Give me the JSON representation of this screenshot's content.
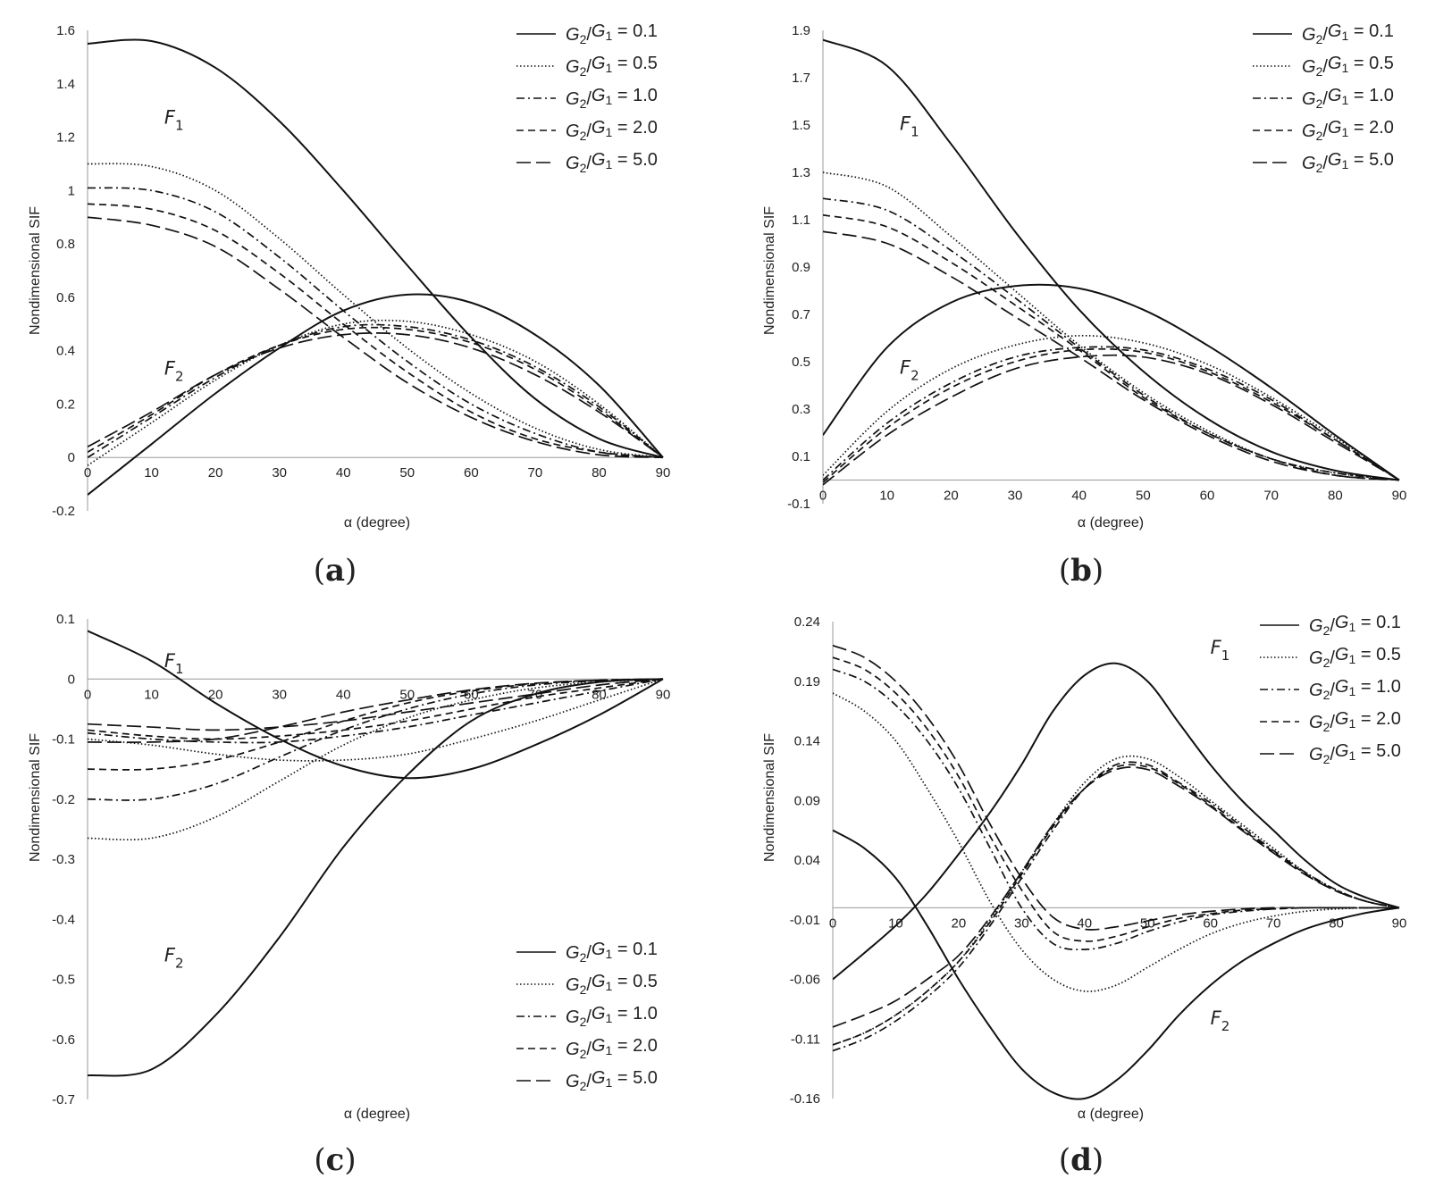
{
  "figure": {
    "legend_entries": [
      {
        "lhs_num": "G",
        "lhs_num_sub": "2",
        "slash": "/",
        "lhs_den": "G",
        "lhs_den_sub": "1",
        "rhs": " = 0.1",
        "dash": "solid"
      },
      {
        "lhs_num": "G",
        "lhs_num_sub": "2",
        "slash": "/",
        "lhs_den": "G",
        "lhs_den_sub": "1",
        "rhs": " = 0.5",
        "dash": "dotted"
      },
      {
        "lhs_num": "G",
        "lhs_num_sub": "2",
        "slash": "/",
        "lhs_den": "G",
        "lhs_den_sub": "1",
        "rhs": " = 1.0",
        "dash": "dashdot"
      },
      {
        "lhs_num": "G",
        "lhs_num_sub": "2",
        "slash": "/",
        "lhs_den": "G",
        "lhs_den_sub": "1",
        "rhs": " = 2.0",
        "dash": "dashed"
      },
      {
        "lhs_num": "G",
        "lhs_num_sub": "2",
        "slash": "/",
        "lhs_den": "G",
        "lhs_den_sub": "1",
        "rhs": " = 5.0",
        "dash": "longdashdot"
      }
    ]
  },
  "chart_data": [
    {
      "id": "a",
      "type": "line",
      "panel_label": "a",
      "xlabel": "α (degree)",
      "ylabel": "Nondimensional SIF",
      "xlim": [
        0,
        90
      ],
      "ylim": [
        -0.2,
        1.6
      ],
      "xticks": [
        "0",
        "10",
        "20",
        "30",
        "40",
        "50",
        "60",
        "70",
        "80",
        "90"
      ],
      "yticks": [
        "-0.2",
        "0",
        "0.2",
        "0.4",
        "0.6",
        "0.8",
        "1",
        "1.2",
        "1.4",
        "1.6"
      ],
      "ytick_values": [
        -0.2,
        0,
        0.2,
        0.4,
        0.6,
        0.8,
        1,
        1.2,
        1.4,
        1.6
      ],
      "legend_position": "top-right",
      "curve_labels": [
        {
          "name": "F",
          "sub": "1",
          "x": 12,
          "y": 1.25
        },
        {
          "name": "F",
          "sub": "2",
          "x": 12,
          "y": 0.31
        }
      ],
      "x": [
        0,
        10,
        20,
        30,
        40,
        50,
        60,
        70,
        80,
        90
      ],
      "series": [
        {
          "name": "F1, G2/G1 = 0.1",
          "dash": "solid",
          "values": [
            1.55,
            1.56,
            1.46,
            1.26,
            1.0,
            0.72,
            0.45,
            0.22,
            0.07,
            0
          ]
        },
        {
          "name": "F1, G2/G1 = 0.5",
          "dash": "dotted",
          "values": [
            1.1,
            1.09,
            1.0,
            0.82,
            0.61,
            0.41,
            0.24,
            0.11,
            0.03,
            0
          ]
        },
        {
          "name": "F1, G2/G1 = 1.0",
          "dash": "dashdot",
          "values": [
            1.01,
            1.0,
            0.92,
            0.75,
            0.55,
            0.36,
            0.2,
            0.09,
            0.02,
            0
          ]
        },
        {
          "name": "F1, G2/G1 = 2.0",
          "dash": "dashed",
          "values": [
            0.95,
            0.93,
            0.85,
            0.69,
            0.5,
            0.32,
            0.17,
            0.07,
            0.02,
            0
          ]
        },
        {
          "name": "F1, G2/G1 = 5.0",
          "dash": "longdashdot",
          "values": [
            0.9,
            0.87,
            0.79,
            0.63,
            0.45,
            0.28,
            0.15,
            0.06,
            0.01,
            0
          ]
        },
        {
          "name": "F2, G2/G1 = 0.1",
          "dash": "solid",
          "values": [
            -0.14,
            0.05,
            0.24,
            0.41,
            0.55,
            0.61,
            0.58,
            0.46,
            0.27,
            0
          ]
        },
        {
          "name": "F2, G2/G1 = 0.5",
          "dash": "dotted",
          "values": [
            -0.03,
            0.13,
            0.29,
            0.42,
            0.5,
            0.51,
            0.46,
            0.36,
            0.2,
            0
          ]
        },
        {
          "name": "F2, G2/G1 = 1.0",
          "dash": "dashdot",
          "values": [
            0.0,
            0.15,
            0.3,
            0.42,
            0.49,
            0.49,
            0.44,
            0.34,
            0.19,
            0
          ]
        },
        {
          "name": "F2, G2/G1 = 2.0",
          "dash": "dashed",
          "values": [
            0.02,
            0.16,
            0.31,
            0.42,
            0.48,
            0.48,
            0.43,
            0.33,
            0.18,
            0
          ]
        },
        {
          "name": "F2, G2/G1 = 5.0",
          "dash": "longdashdot",
          "values": [
            0.04,
            0.17,
            0.31,
            0.41,
            0.46,
            0.46,
            0.41,
            0.31,
            0.17,
            0
          ]
        }
      ]
    },
    {
      "id": "b",
      "type": "line",
      "panel_label": "b",
      "xlabel": "α (degree)",
      "ylabel": "Nondimensional SIF",
      "xlim": [
        0,
        90
      ],
      "ylim": [
        -0.1,
        1.9
      ],
      "xticks": [
        "0",
        "10",
        "20",
        "30",
        "40",
        "50",
        "60",
        "70",
        "80",
        "90"
      ],
      "yticks": [
        "-0.1",
        "0.1",
        "0.3",
        "0.5",
        "0.7",
        "0.9",
        "1.1",
        "1.3",
        "1.5",
        "1.7",
        "1.9"
      ],
      "ytick_values": [
        -0.1,
        0.1,
        0.3,
        0.5,
        0.7,
        0.9,
        1.1,
        1.3,
        1.5,
        1.7,
        1.9
      ],
      "legend_position": "top-right",
      "curve_labels": [
        {
          "name": "F",
          "sub": "1",
          "x": 12,
          "y": 1.48
        },
        {
          "name": "F",
          "sub": "2",
          "x": 12,
          "y": 0.45
        }
      ],
      "x": [
        0,
        10,
        20,
        30,
        40,
        50,
        60,
        70,
        80,
        90
      ],
      "series": [
        {
          "name": "F1, G2/G1 = 0.1",
          "dash": "solid",
          "values": [
            1.86,
            1.75,
            1.42,
            1.05,
            0.72,
            0.46,
            0.26,
            0.12,
            0.04,
            0
          ]
        },
        {
          "name": "F1, G2/G1 = 0.5",
          "dash": "dotted",
          "values": [
            1.3,
            1.24,
            1.03,
            0.8,
            0.57,
            0.37,
            0.21,
            0.09,
            0.03,
            0
          ]
        },
        {
          "name": "F1, G2/G1 = 1.0",
          "dash": "dashdot",
          "values": [
            1.19,
            1.14,
            0.97,
            0.77,
            0.56,
            0.36,
            0.2,
            0.09,
            0.03,
            0
          ]
        },
        {
          "name": "F1, G2/G1 = 2.0",
          "dash": "dashed",
          "values": [
            1.12,
            1.07,
            0.92,
            0.74,
            0.55,
            0.35,
            0.2,
            0.09,
            0.02,
            0
          ]
        },
        {
          "name": "F1, G2/G1 = 5.0",
          "dash": "longdashdot",
          "values": [
            1.05,
            1.0,
            0.86,
            0.69,
            0.52,
            0.34,
            0.19,
            0.08,
            0.02,
            0
          ]
        },
        {
          "name": "F2, G2/G1 = 0.1",
          "dash": "solid",
          "values": [
            0.19,
            0.56,
            0.75,
            0.82,
            0.81,
            0.72,
            0.57,
            0.39,
            0.19,
            0
          ]
        },
        {
          "name": "F2, G2/G1 = 0.5",
          "dash": "dotted",
          "values": [
            0.02,
            0.29,
            0.47,
            0.57,
            0.61,
            0.58,
            0.49,
            0.35,
            0.18,
            0
          ]
        },
        {
          "name": "F2, G2/G1 = 1.0",
          "dash": "dashdot",
          "values": [
            0.0,
            0.24,
            0.41,
            0.52,
            0.56,
            0.55,
            0.47,
            0.34,
            0.17,
            0
          ]
        },
        {
          "name": "F2, G2/G1 = 2.0",
          "dash": "dashed",
          "values": [
            -0.01,
            0.22,
            0.39,
            0.5,
            0.55,
            0.54,
            0.46,
            0.33,
            0.17,
            0
          ]
        },
        {
          "name": "F2, G2/G1 = 5.0",
          "dash": "longdashdot",
          "values": [
            -0.02,
            0.19,
            0.35,
            0.47,
            0.52,
            0.52,
            0.45,
            0.32,
            0.16,
            0
          ]
        }
      ]
    },
    {
      "id": "c",
      "type": "line",
      "panel_label": "c",
      "xlabel": "α (degree)",
      "ylabel": "Nondimensional SIF",
      "xlim": [
        0,
        90
      ],
      "ylim": [
        -0.7,
        0.1
      ],
      "xticks": [
        "0",
        "10",
        "20",
        "30",
        "40",
        "50",
        "60",
        "70",
        "80",
        "90"
      ],
      "yticks": [
        "-0.7",
        "-0.6",
        "-0.5",
        "-0.4",
        "-0.3",
        "-0.2",
        "-0.1",
        "0",
        "0.1"
      ],
      "ytick_values": [
        -0.7,
        -0.6,
        -0.5,
        -0.4,
        -0.3,
        -0.2,
        -0.1,
        0,
        0.1
      ],
      "legend_position": "bottom-right",
      "curve_labels": [
        {
          "name": "F",
          "sub": "1",
          "x": 12,
          "y": 0.02
        },
        {
          "name": "F",
          "sub": "2",
          "x": 12,
          "y": -0.47
        }
      ],
      "x": [
        0,
        10,
        20,
        30,
        40,
        50,
        60,
        70,
        80,
        90
      ],
      "series": [
        {
          "name": "F1, G2/G1 = 0.1",
          "dash": "solid",
          "values": [
            0.08,
            0.03,
            -0.04,
            -0.1,
            -0.145,
            -0.165,
            -0.15,
            -0.11,
            -0.06,
            0
          ]
        },
        {
          "name": "F1, G2/G1 = 0.5",
          "dash": "dotted",
          "values": [
            -0.1,
            -0.11,
            -0.125,
            -0.135,
            -0.135,
            -0.125,
            -0.1,
            -0.07,
            -0.035,
            0
          ]
        },
        {
          "name": "F1, G2/G1 = 1.0",
          "dash": "dashdot",
          "values": [
            -0.09,
            -0.1,
            -0.105,
            -0.105,
            -0.095,
            -0.08,
            -0.06,
            -0.04,
            -0.02,
            0
          ]
        },
        {
          "name": "F1, G2/G1 = 2.0",
          "dash": "dashed",
          "values": [
            -0.085,
            -0.095,
            -0.1,
            -0.095,
            -0.085,
            -0.07,
            -0.05,
            -0.03,
            -0.015,
            0
          ]
        },
        {
          "name": "F1, G2/G1 = 5.0",
          "dash": "longdashdot",
          "values": [
            -0.075,
            -0.08,
            -0.085,
            -0.08,
            -0.07,
            -0.055,
            -0.04,
            -0.025,
            -0.01,
            0
          ]
        },
        {
          "name": "F2, G2/G1 = 0.1",
          "dash": "solid",
          "values": [
            -0.66,
            -0.65,
            -0.56,
            -0.43,
            -0.28,
            -0.16,
            -0.07,
            -0.025,
            -0.005,
            0
          ]
        },
        {
          "name": "F2, G2/G1 = 0.5",
          "dash": "dotted",
          "values": [
            -0.265,
            -0.265,
            -0.23,
            -0.17,
            -0.11,
            -0.065,
            -0.035,
            -0.015,
            -0.005,
            0
          ]
        },
        {
          "name": "F2, G2/G1 = 1.0",
          "dash": "dashdot",
          "values": [
            -0.2,
            -0.2,
            -0.175,
            -0.13,
            -0.085,
            -0.05,
            -0.025,
            -0.01,
            -0.003,
            0
          ]
        },
        {
          "name": "F2, G2/G1 = 2.0",
          "dash": "dashed",
          "values": [
            -0.15,
            -0.15,
            -0.135,
            -0.105,
            -0.07,
            -0.04,
            -0.02,
            -0.008,
            -0.002,
            0
          ]
        },
        {
          "name": "F2, G2/G1 = 5.0",
          "dash": "longdashdot",
          "values": [
            -0.105,
            -0.105,
            -0.1,
            -0.08,
            -0.055,
            -0.035,
            -0.018,
            -0.007,
            -0.002,
            0
          ]
        }
      ]
    },
    {
      "id": "d",
      "type": "line",
      "panel_label": "d",
      "xlabel": "α (degree)",
      "ylabel": "Nondimensional SIF",
      "xlim": [
        0,
        90
      ],
      "ylim": [
        -0.16,
        0.24
      ],
      "xticks": [
        "0",
        "10",
        "20",
        "30",
        "40",
        "50",
        "60",
        "70",
        "80",
        "90"
      ],
      "yticks": [
        "-0.16",
        "-0.11",
        "-0.06",
        "-0.01",
        "0.04",
        "0.09",
        "0.14",
        "0.19",
        "0.24"
      ],
      "ytick_values": [
        -0.16,
        -0.11,
        -0.06,
        -0.01,
        0.04,
        0.09,
        0.14,
        0.19,
        0.24
      ],
      "legend_position": "top-right",
      "curve_labels": [
        {
          "name": "F",
          "sub": "1",
          "x": 60,
          "y": 0.213
        },
        {
          "name": "F",
          "sub": "2",
          "x": 60,
          "y": -0.098
        }
      ],
      "x": [
        0,
        5,
        10,
        15,
        20,
        25,
        30,
        35,
        40,
        45,
        50,
        55,
        60,
        65,
        70,
        75,
        80,
        85,
        90
      ],
      "series": [
        {
          "name": "F1, G2/G1 = 0.1",
          "dash": "solid",
          "values": [
            -0.06,
            -0.038,
            -0.015,
            0.012,
            0.045,
            0.08,
            0.12,
            0.165,
            0.195,
            0.205,
            0.19,
            0.155,
            0.12,
            0.09,
            0.065,
            0.04,
            0.02,
            0.008,
            0
          ]
        },
        {
          "name": "F1, G2/G1 = 0.5",
          "dash": "dotted",
          "values": [
            -0.115,
            -0.105,
            -0.09,
            -0.07,
            -0.045,
            -0.01,
            0.03,
            0.07,
            0.105,
            0.125,
            0.125,
            0.11,
            0.09,
            0.07,
            0.05,
            0.03,
            0.015,
            0.005,
            0
          ]
        },
        {
          "name": "F1, G2/G1 = 1.0",
          "dash": "dashdot",
          "values": [
            -0.12,
            -0.11,
            -0.095,
            -0.075,
            -0.05,
            -0.015,
            0.025,
            0.065,
            0.1,
            0.12,
            0.12,
            0.105,
            0.088,
            0.068,
            0.048,
            0.03,
            0.015,
            0.005,
            0
          ]
        },
        {
          "name": "F1, G2/G1 = 2.0",
          "dash": "dashed",
          "values": [
            -0.115,
            -0.105,
            -0.09,
            -0.07,
            -0.045,
            -0.012,
            0.028,
            0.068,
            0.1,
            0.118,
            0.118,
            0.104,
            0.086,
            0.066,
            0.047,
            0.029,
            0.014,
            0.005,
            0
          ]
        },
        {
          "name": "F1, G2/G1 = 5.0",
          "dash": "longdashdot",
          "values": [
            -0.1,
            -0.09,
            -0.078,
            -0.06,
            -0.04,
            -0.008,
            0.03,
            0.07,
            0.1,
            0.116,
            0.116,
            0.102,
            0.085,
            0.065,
            0.046,
            0.028,
            0.014,
            0.005,
            0
          ]
        },
        {
          "name": "F2, G2/G1 = 0.1",
          "dash": "solid",
          "values": [
            0.065,
            0.05,
            0.025,
            -0.015,
            -0.06,
            -0.1,
            -0.135,
            -0.155,
            -0.16,
            -0.145,
            -0.12,
            -0.09,
            -0.065,
            -0.045,
            -0.03,
            -0.018,
            -0.01,
            -0.004,
            0
          ]
        },
        {
          "name": "F2, G2/G1 = 0.5",
          "dash": "dotted",
          "values": [
            0.18,
            0.165,
            0.14,
            0.1,
            0.055,
            0.005,
            -0.035,
            -0.06,
            -0.07,
            -0.065,
            -0.05,
            -0.035,
            -0.022,
            -0.013,
            -0.007,
            -0.003,
            -0.001,
            0,
            0
          ]
        },
        {
          "name": "F2, G2/G1 = 1.0",
          "dash": "dashdot",
          "values": [
            0.2,
            0.19,
            0.17,
            0.14,
            0.1,
            0.05,
            0.0,
            -0.03,
            -0.035,
            -0.03,
            -0.02,
            -0.012,
            -0.006,
            -0.003,
            -0.001,
            0,
            0,
            0,
            0
          ]
        },
        {
          "name": "F2, G2/G1 = 2.0",
          "dash": "dashed",
          "values": [
            0.21,
            0.2,
            0.18,
            0.15,
            0.11,
            0.06,
            0.015,
            -0.02,
            -0.028,
            -0.024,
            -0.016,
            -0.009,
            -0.005,
            -0.002,
            -0.001,
            0,
            0,
            0,
            0
          ]
        },
        {
          "name": "F2, G2/G1 = 5.0",
          "dash": "longdashdot",
          "values": [
            0.22,
            0.21,
            0.19,
            0.16,
            0.12,
            0.07,
            0.025,
            -0.008,
            -0.018,
            -0.016,
            -0.011,
            -0.006,
            -0.003,
            -0.001,
            0,
            0,
            0,
            0,
            0
          ]
        }
      ]
    }
  ]
}
